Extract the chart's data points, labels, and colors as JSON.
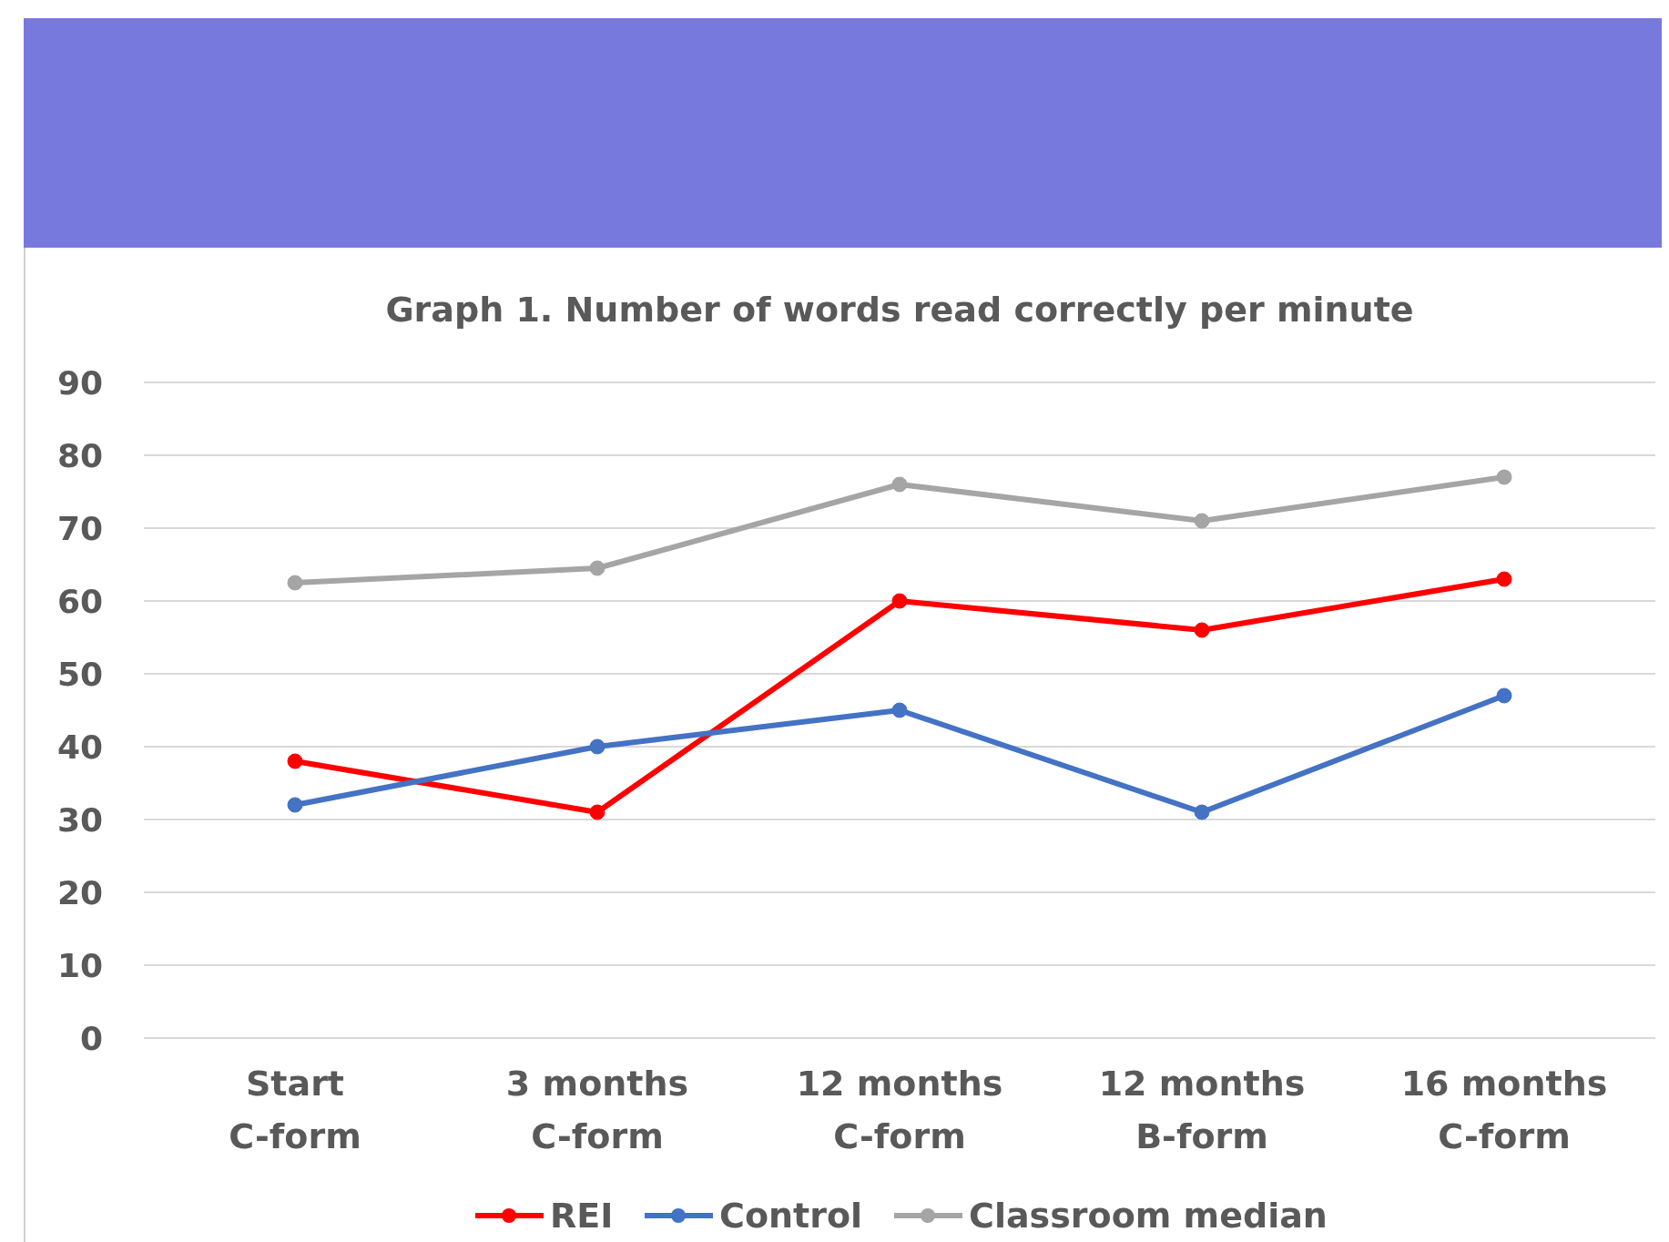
{
  "chart_data": {
    "type": "line",
    "title": "Graph 1. Number of words read correctly per minute",
    "categories": [
      "Start\nC-form",
      "3 months\nC-form",
      "12 months\nC-form",
      "12 months\nB-form",
      "16 months\nC-form"
    ],
    "series": [
      {
        "name": "REI",
        "color": "#ff0000",
        "values": [
          38,
          31,
          60,
          56,
          63
        ]
      },
      {
        "name": "Control",
        "color": "#4472c4",
        "values": [
          32,
          40,
          45,
          31,
          47
        ]
      },
      {
        "name": "Classroom median",
        "color": "#a5a5a5",
        "values": [
          62.5,
          64.5,
          76,
          71,
          77
        ]
      }
    ],
    "ylim": [
      0,
      90
    ],
    "yticks": [
      0,
      10,
      20,
      30,
      40,
      50,
      60,
      70,
      80,
      90
    ],
    "grid": "y",
    "legend": "bottom",
    "marker": "circle",
    "line_style": "solid"
  }
}
